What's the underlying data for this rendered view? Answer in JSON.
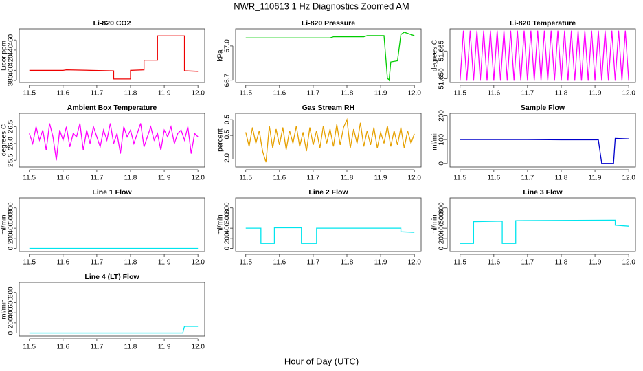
{
  "title": "NWR_110613  1 Hz Diagnostics Zoomed AM",
  "xlabel": "Hour of Day (UTC)",
  "chart_data": [
    {
      "type": "line",
      "title": "Li-820 CO2",
      "ylabel": "Licor ppm",
      "color": "#ee0000",
      "xlim": [
        11.47,
        12.02
      ],
      "xticks": [
        11.5,
        11.6,
        11.7,
        11.8,
        11.9,
        {
          "value": 12,
          "label": "12.0"
        }
      ],
      "ylim": [
        376,
        482
      ],
      "yticks": [
        380,
        400,
        420,
        440,
        460
      ],
      "x": [
        11.5,
        11.6,
        11.61,
        11.75,
        11.75,
        11.8,
        11.8,
        11.84,
        11.84,
        11.88,
        11.88,
        11.96,
        11.96,
        12.0
      ],
      "values": [
        400,
        400,
        401,
        399,
        383,
        383,
        400,
        401,
        420,
        420,
        468,
        468,
        399,
        398
      ]
    },
    {
      "type": "line",
      "title": "Li-820 Pressure",
      "ylabel": "kPa",
      "color": "#00cc00",
      "xlim": [
        11.47,
        12.02
      ],
      "xticks": [
        11.5,
        11.6,
        11.7,
        11.8,
        11.9,
        {
          "value": 12,
          "label": "12.0"
        }
      ],
      "ylim": [
        66.68,
        67.15
      ],
      "yticks": [
        66.7,
        {
          "value": 67,
          "label": "67.0"
        }
      ],
      "x": [
        11.5,
        11.6,
        11.75,
        11.76,
        11.85,
        11.86,
        11.91,
        11.92,
        11.925,
        11.93,
        11.95,
        11.96,
        11.97,
        12.0
      ],
      "values": [
        67.07,
        67.07,
        67.07,
        67.08,
        67.08,
        67.09,
        67.09,
        66.72,
        66.7,
        66.86,
        66.87,
        67.1,
        67.12,
        67.09
      ]
    },
    {
      "type": "line",
      "title": "Li-820 Temperature",
      "ylabel": "degrees C",
      "color": "#ff00ff",
      "xlim": [
        11.47,
        12.02
      ],
      "xticks": [
        11.5,
        11.6,
        11.7,
        11.8,
        11.9,
        {
          "value": 12,
          "label": "12.0"
        }
      ],
      "ylim": [
        51.648,
        51.677
      ],
      "yticks": [
        {
          "value": 51.65,
          "label": "51.650"
        },
        {
          "value": 51.665,
          "label": "51.665"
        }
      ],
      "x": [
        11.5,
        11.51,
        11.52,
        11.53,
        11.54,
        11.55,
        11.56,
        11.57,
        11.58,
        11.59,
        11.6,
        11.61,
        11.62,
        11.63,
        11.64,
        11.65,
        11.66,
        11.67,
        11.68,
        11.69,
        11.7,
        11.71,
        11.72,
        11.73,
        11.74,
        11.75,
        11.76,
        11.77,
        11.78,
        11.79,
        11.8,
        11.81,
        11.82,
        11.83,
        11.84,
        11.85,
        11.86,
        11.87,
        11.88,
        11.89,
        11.9,
        11.91,
        11.92,
        11.93,
        11.94,
        11.95,
        11.96,
        11.97,
        11.98,
        11.99,
        12.0
      ],
      "values": [
        51.649,
        51.676,
        51.649,
        51.676,
        51.649,
        51.676,
        51.649,
        51.676,
        51.649,
        51.676,
        51.649,
        51.676,
        51.649,
        51.676,
        51.649,
        51.676,
        51.649,
        51.676,
        51.649,
        51.676,
        51.649,
        51.676,
        51.649,
        51.676,
        51.649,
        51.676,
        51.649,
        51.676,
        51.649,
        51.676,
        51.649,
        51.676,
        51.649,
        51.676,
        51.649,
        51.676,
        51.649,
        51.676,
        51.649,
        51.676,
        51.649,
        51.676,
        51.649,
        51.676,
        51.649,
        51.676,
        51.649,
        51.676,
        51.649,
        51.676,
        51.649
      ]
    },
    {
      "type": "line",
      "title": "Ambient Box Temperature",
      "ylabel": "degrees C",
      "color": "#ff00ff",
      "xlim": [
        11.47,
        12.02
      ],
      "xticks": [
        11.5,
        11.6,
        11.7,
        11.8,
        11.9,
        {
          "value": 12,
          "label": "12.0"
        }
      ],
      "ylim": [
        25.3,
        26.9
      ],
      "yticks": [
        25.5,
        {
          "value": 26,
          "label": "26.0"
        },
        26.5
      ],
      "x": [
        11.5,
        11.51,
        11.52,
        11.53,
        11.54,
        11.55,
        11.56,
        11.57,
        11.58,
        11.59,
        11.6,
        11.61,
        11.62,
        11.63,
        11.64,
        11.65,
        11.66,
        11.67,
        11.68,
        11.69,
        11.7,
        11.71,
        11.72,
        11.73,
        11.74,
        11.75,
        11.76,
        11.77,
        11.78,
        11.79,
        11.8,
        11.81,
        11.82,
        11.83,
        11.84,
        11.85,
        11.86,
        11.87,
        11.88,
        11.89,
        11.9,
        11.91,
        11.92,
        11.93,
        11.94,
        11.95,
        11.96,
        11.97,
        11.98,
        11.99,
        12.0
      ],
      "values": [
        26.3,
        26.0,
        26.5,
        26.1,
        26.4,
        25.8,
        26.6,
        26.2,
        25.5,
        26.4,
        26.1,
        26.5,
        25.9,
        26.3,
        26.2,
        26.6,
        25.8,
        26.4,
        26.0,
        26.5,
        26.2,
        25.9,
        26.4,
        26.1,
        26.6,
        26.0,
        26.3,
        25.7,
        26.5,
        26.2,
        26.4,
        26.0,
        26.3,
        26.6,
        25.9,
        26.2,
        26.5,
        26.1,
        26.3,
        25.8,
        26.4,
        26.2,
        26.5,
        26.0,
        26.3,
        26.4,
        26.1,
        26.5,
        25.7,
        26.3,
        26.2
      ]
    },
    {
      "type": "line",
      "title": "Gas Stream RH",
      "ylabel": "percent",
      "color": "#e6a000",
      "xlim": [
        11.47,
        12.02
      ],
      "xticks": [
        11.5,
        11.6,
        11.7,
        11.8,
        11.9,
        {
          "value": 12,
          "label": "12.0"
        }
      ],
      "ylim": [
        -2.5,
        0.9
      ],
      "yticks": [
        {
          "value": -2,
          "label": "-2.0"
        },
        -0.5,
        0.5
      ],
      "x": [
        11.5,
        11.51,
        11.52,
        11.53,
        11.54,
        11.55,
        11.56,
        11.57,
        11.58,
        11.59,
        11.6,
        11.61,
        11.62,
        11.63,
        11.64,
        11.65,
        11.66,
        11.67,
        11.68,
        11.69,
        11.7,
        11.71,
        11.72,
        11.73,
        11.74,
        11.75,
        11.76,
        11.77,
        11.78,
        11.79,
        11.8,
        11.81,
        11.82,
        11.83,
        11.84,
        11.85,
        11.86,
        11.87,
        11.88,
        11.89,
        11.9,
        11.91,
        11.92,
        11.93,
        11.94,
        11.95,
        11.96,
        11.97,
        11.98,
        11.99,
        12.0
      ],
      "values": [
        -0.3,
        -1.2,
        0.0,
        -1.0,
        -0.2,
        -1.5,
        -2.2,
        0.1,
        -1.3,
        -0.1,
        -1.1,
        0.0,
        -1.4,
        -0.2,
        -1.0,
        0.1,
        -1.2,
        -0.3,
        -1.5,
        0.0,
        -1.1,
        -0.2,
        -1.3,
        0.1,
        -1.0,
        -0.1,
        -1.2,
        0.2,
        -1.1,
        0.0,
        0.5,
        -1.3,
        -0.1,
        -1.0,
        0.3,
        -1.2,
        -0.2,
        -1.1,
        0.0,
        -1.3,
        -0.3,
        -1.0,
        0.1,
        -1.2,
        -0.2,
        -1.1,
        0.0,
        -1.3,
        -0.2,
        -1.0,
        -0.4
      ]
    },
    {
      "type": "line",
      "title": "Sample Flow",
      "ylabel": "ml/min",
      "color": "#0000cc",
      "xlim": [
        11.47,
        12.02
      ],
      "xticks": [
        11.5,
        11.6,
        11.7,
        11.8,
        11.9,
        {
          "value": 12,
          "label": "12.0"
        }
      ],
      "ylim": [
        -15,
        210
      ],
      "yticks": [
        0,
        100,
        200
      ],
      "x": [
        11.5,
        11.7,
        11.8,
        11.91,
        11.92,
        11.955,
        11.96,
        12.0
      ],
      "values": [
        100,
        100,
        99,
        99,
        0,
        0,
        105,
        103
      ]
    },
    {
      "type": "line",
      "title": "Line 1 Flow",
      "ylabel": "ml/min",
      "color": "#00e5ee",
      "xlim": [
        11.47,
        12.02
      ],
      "xticks": [
        11.5,
        11.6,
        11.7,
        11.8,
        11.9,
        {
          "value": 12,
          "label": "12.0"
        }
      ],
      "ylim": [
        -60,
        1000
      ],
      "yticks": [
        0,
        200,
        400,
        600,
        800
      ],
      "x": [
        11.5,
        12.0
      ],
      "values": [
        0,
        0
      ]
    },
    {
      "type": "line",
      "title": "Line 2 Flow",
      "ylabel": "ml/min",
      "color": "#00e5ee",
      "xlim": [
        11.47,
        12.02
      ],
      "xticks": [
        11.5,
        11.6,
        11.7,
        11.8,
        11.9,
        {
          "value": 12,
          "label": "12.0"
        }
      ],
      "ylim": [
        -60,
        1000
      ],
      "yticks": [
        0,
        200,
        400,
        600,
        800
      ],
      "x": [
        11.5,
        11.545,
        11.545,
        11.585,
        11.585,
        11.665,
        11.665,
        11.71,
        11.71,
        11.96,
        11.96,
        12.0
      ],
      "values": [
        400,
        400,
        100,
        100,
        410,
        410,
        100,
        100,
        400,
        400,
        330,
        320
      ]
    },
    {
      "type": "line",
      "title": "Line 3 Flow",
      "ylabel": "ml/min",
      "color": "#00e5ee",
      "xlim": [
        11.47,
        12.02
      ],
      "xticks": [
        11.5,
        11.6,
        11.7,
        11.8,
        11.9,
        {
          "value": 12,
          "label": "12.0"
        }
      ],
      "ylim": [
        -60,
        1000
      ],
      "yticks": [
        0,
        200,
        400,
        600,
        800
      ],
      "x": [
        11.5,
        11.54,
        11.54,
        11.625,
        11.625,
        11.665,
        11.665,
        11.96,
        11.96,
        12.0
      ],
      "values": [
        100,
        100,
        530,
        540,
        100,
        100,
        550,
        560,
        460,
        440
      ]
    },
    {
      "type": "line",
      "title": "Line 4 (LT) Flow",
      "ylabel": "ml/min",
      "color": "#00e5ee",
      "xlim": [
        11.47,
        12.02
      ],
      "xticks": [
        11.5,
        11.6,
        11.7,
        11.8,
        11.9,
        {
          "value": 12,
          "label": "12.0"
        }
      ],
      "ylim": [
        -60,
        1000
      ],
      "yticks": [
        0,
        200,
        400,
        600,
        800
      ],
      "x": [
        11.5,
        11.955,
        11.96,
        12.0
      ],
      "values": [
        0,
        0,
        130,
        130
      ]
    }
  ]
}
